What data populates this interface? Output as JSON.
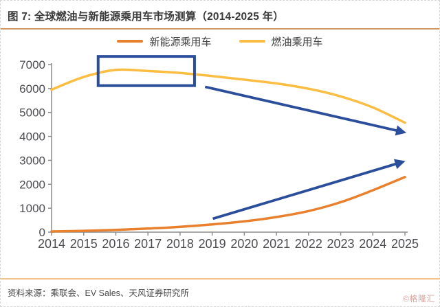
{
  "header": {
    "title": "图 7: 全球燃油与新能源乘用车市场测算（2014-2025 年）"
  },
  "chart_data": {
    "type": "line",
    "x": [
      2014,
      2015,
      2016,
      2017,
      2018,
      2019,
      2020,
      2021,
      2022,
      2023,
      2024,
      2025
    ],
    "series": [
      {
        "name": "新能源乘用车",
        "color": "#E8802D",
        "values": [
          30,
          55,
          95,
          150,
          220,
          320,
          450,
          630,
          880,
          1250,
          1750,
          2300
        ]
      },
      {
        "name": "燃油乘用车",
        "color": "#FBBD42",
        "values": [
          5950,
          6480,
          6780,
          6730,
          6650,
          6520,
          6370,
          6210,
          5990,
          5670,
          5210,
          4570
        ]
      }
    ],
    "ylim": [
      0,
      7000
    ],
    "ytick_step": 1000,
    "grid": false,
    "legend_position": "top-center",
    "axis_color": "#8C8C8C",
    "tick_label_color": "#4D4D52",
    "annotations": {
      "highlight_box": {
        "x_from": 2015.45,
        "x_to": 2018.45,
        "y_from": 6120,
        "y_to": 7340,
        "color": "#2B4E9B"
      },
      "arrows": [
        {
          "name": "fuel-decline-arrow",
          "x_from": 2018.78,
          "y_from": 6070,
          "x_to": 2024.95,
          "y_to": 4180,
          "color": "#2B4E9B"
        },
        {
          "name": "nev-growth-arrow",
          "x_from": 2019.02,
          "y_from": 560,
          "x_to": 2024.92,
          "y_to": 2930,
          "color": "#2B4E9B"
        }
      ]
    }
  },
  "footer": {
    "source": "资料来源：乘联会、EV Sales、天风证券研究所",
    "watermark": "©格隆汇"
  }
}
